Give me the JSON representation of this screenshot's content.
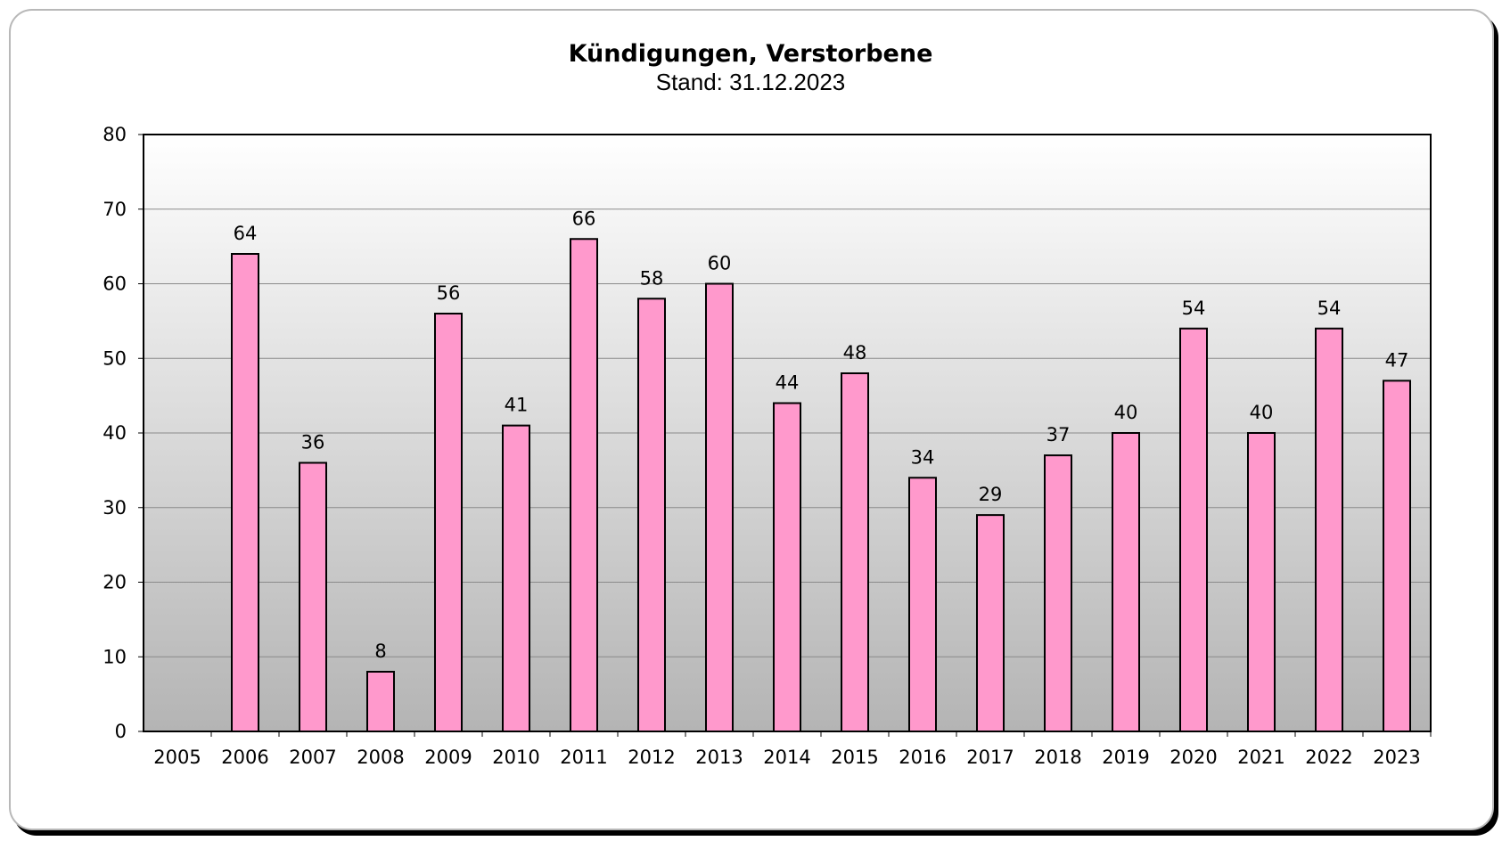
{
  "chart_data": {
    "type": "bar",
    "title": "Kündigungen, Verstorbene",
    "subtitle": "Stand: 31.12.2023",
    "categories": [
      "2005",
      "2006",
      "2007",
      "2008",
      "2009",
      "2010",
      "2011",
      "2012",
      "2013",
      "2014",
      "2015",
      "2016",
      "2017",
      "2018",
      "2019",
      "2020",
      "2021",
      "2022",
      "2023"
    ],
    "values": [
      null,
      64,
      36,
      8,
      56,
      41,
      66,
      58,
      60,
      44,
      48,
      34,
      29,
      37,
      40,
      54,
      40,
      54,
      47
    ],
    "data_labels": [
      "",
      "64",
      "36",
      "8",
      "56",
      "41",
      "66",
      "58",
      "60",
      "44",
      "48",
      "34",
      "29",
      "37",
      "40",
      "54",
      "40",
      "54",
      "47"
    ],
    "ylim": [
      0,
      80
    ],
    "yticks": [
      "0",
      "10",
      "20",
      "30",
      "40",
      "50",
      "60",
      "70",
      "80"
    ],
    "xlabel": "",
    "ylabel": "",
    "grid": true,
    "legend": "none",
    "colors": {
      "bar_fill": "#ff99cc",
      "bar_stroke": "#000000",
      "plot_bg_top": "#ffffff",
      "plot_bg_bottom": "#b4b4b4",
      "gridline": "#8a8a8a"
    }
  }
}
